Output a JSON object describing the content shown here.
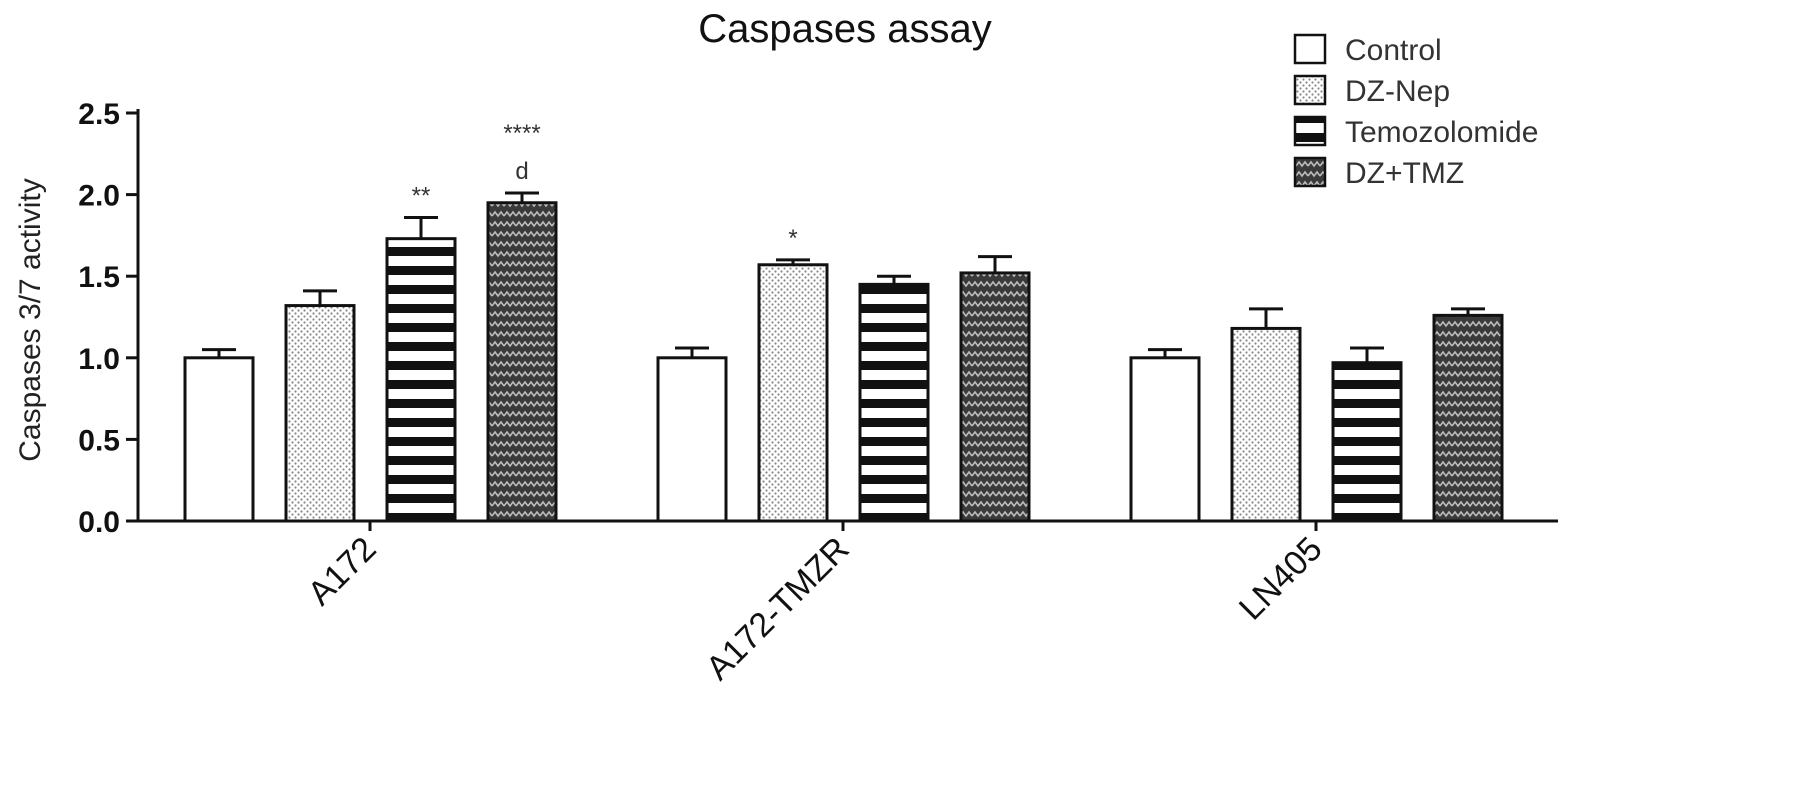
{
  "chart_data": {
    "type": "bar",
    "title": "Caspases assay",
    "xlabel": "",
    "ylabel": "Caspases 3/7 activity",
    "ylim": [
      0,
      2.5
    ],
    "yticks": [
      "0.0",
      "0.5",
      "1.0",
      "1.5",
      "2.0",
      "2.5"
    ],
    "legend_position": "top-right",
    "categories": [
      "A172",
      "A172-TMZR",
      "LN405"
    ],
    "series": [
      {
        "name": "Control",
        "pattern": "none",
        "values": [
          1.0,
          1.0,
          1.0
        ],
        "errors": [
          0.05,
          0.06,
          0.05
        ]
      },
      {
        "name": "DZ-Nep",
        "pattern": "dots",
        "values": [
          1.32,
          1.57,
          1.18
        ],
        "errors": [
          0.09,
          0.03,
          0.12
        ]
      },
      {
        "name": "Temozolomide",
        "pattern": "stripes",
        "values": [
          1.73,
          1.45,
          0.97
        ],
        "errors": [
          0.13,
          0.05,
          0.09
        ]
      },
      {
        "name": "DZ+TMZ",
        "pattern": "waves",
        "values": [
          1.95,
          1.52,
          1.26
        ],
        "errors": [
          0.06,
          0.1,
          0.04
        ]
      }
    ],
    "annotations": [
      {
        "category": "A172",
        "series": "Temozolomide",
        "text": "**"
      },
      {
        "category": "A172",
        "series": "DZ+TMZ",
        "text": "****"
      },
      {
        "category": "A172",
        "series": "DZ+TMZ",
        "text": "d"
      },
      {
        "category": "A172-TMZR",
        "series": "DZ-Nep",
        "text": "*"
      }
    ],
    "colors": {
      "axis": "#111111",
      "bar_border": "#111111",
      "fill": "#ffffff"
    }
  }
}
